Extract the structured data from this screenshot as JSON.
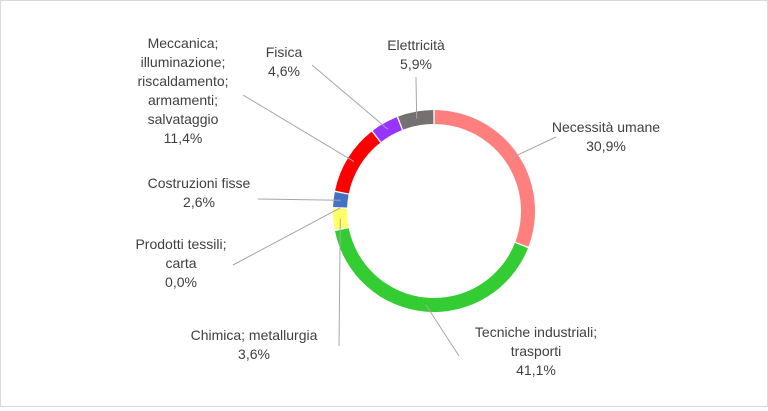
{
  "chart_data": {
    "type": "pie",
    "variant": "donut",
    "legend": "none",
    "slices": [
      {
        "label_lines": [
          "Necessità umane"
        ],
        "value_text": "30,9%",
        "value": 30.9,
        "color": "#ff7f7f"
      },
      {
        "label_lines": [
          "Tecniche industriali;",
          "trasporti"
        ],
        "value_text": "41,1%",
        "value": 41.1,
        "color": "#33cc33"
      },
      {
        "label_lines": [
          "Chimica; metallurgia"
        ],
        "value_text": "3,6%",
        "value": 3.6,
        "color": "#ffff66"
      },
      {
        "label_lines": [
          "Prodotti tessili;",
          "carta"
        ],
        "value_text": "0,0%",
        "value": 0.0,
        "color": "#bfbfbf"
      },
      {
        "label_lines": [
          "Costruzioni fisse"
        ],
        "value_text": "2,6%",
        "value": 2.6,
        "color": "#4472c4"
      },
      {
        "label_lines": [
          "Meccanica;",
          "illuminazione;",
          "riscaldamento;",
          "armamenti;",
          "salvataggio"
        ],
        "value_text": "11,4%",
        "value": 11.4,
        "color": "#ff0000"
      },
      {
        "label_lines": [
          "Fisica"
        ],
        "value_text": "4,6%",
        "value": 4.6,
        "color": "#9933ff"
      },
      {
        "label_lines": [
          "Elettricità"
        ],
        "value_text": "5,9%",
        "value": 5.9,
        "color": "#767171"
      }
    ]
  }
}
